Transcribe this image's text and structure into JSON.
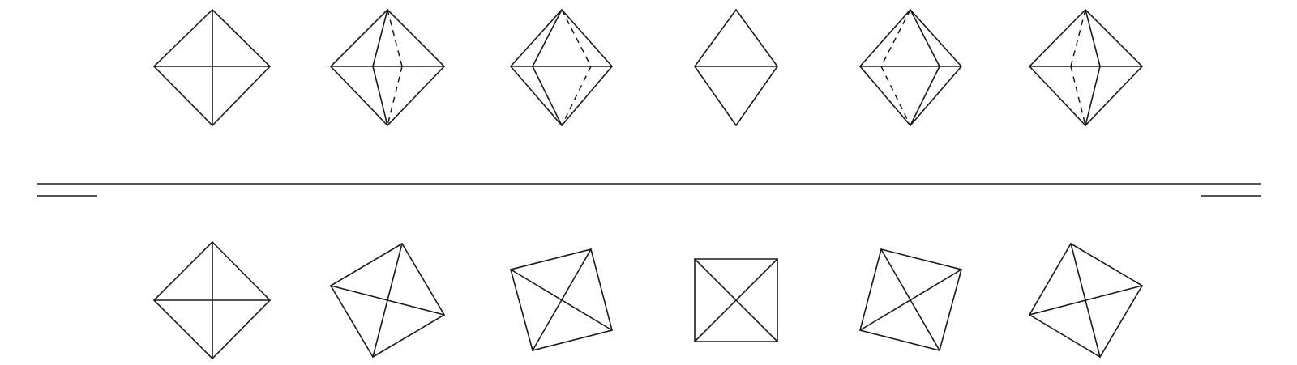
{
  "figure": {
    "stroke_color": "#1a1a1a",
    "background_color": "#ffffff",
    "top_row": {
      "description_name": "octahedron-rotation-side-views",
      "frames": 6
    },
    "bottom_row": {
      "description_name": "octahedron-rotation-top-views",
      "frames": 6
    }
  }
}
